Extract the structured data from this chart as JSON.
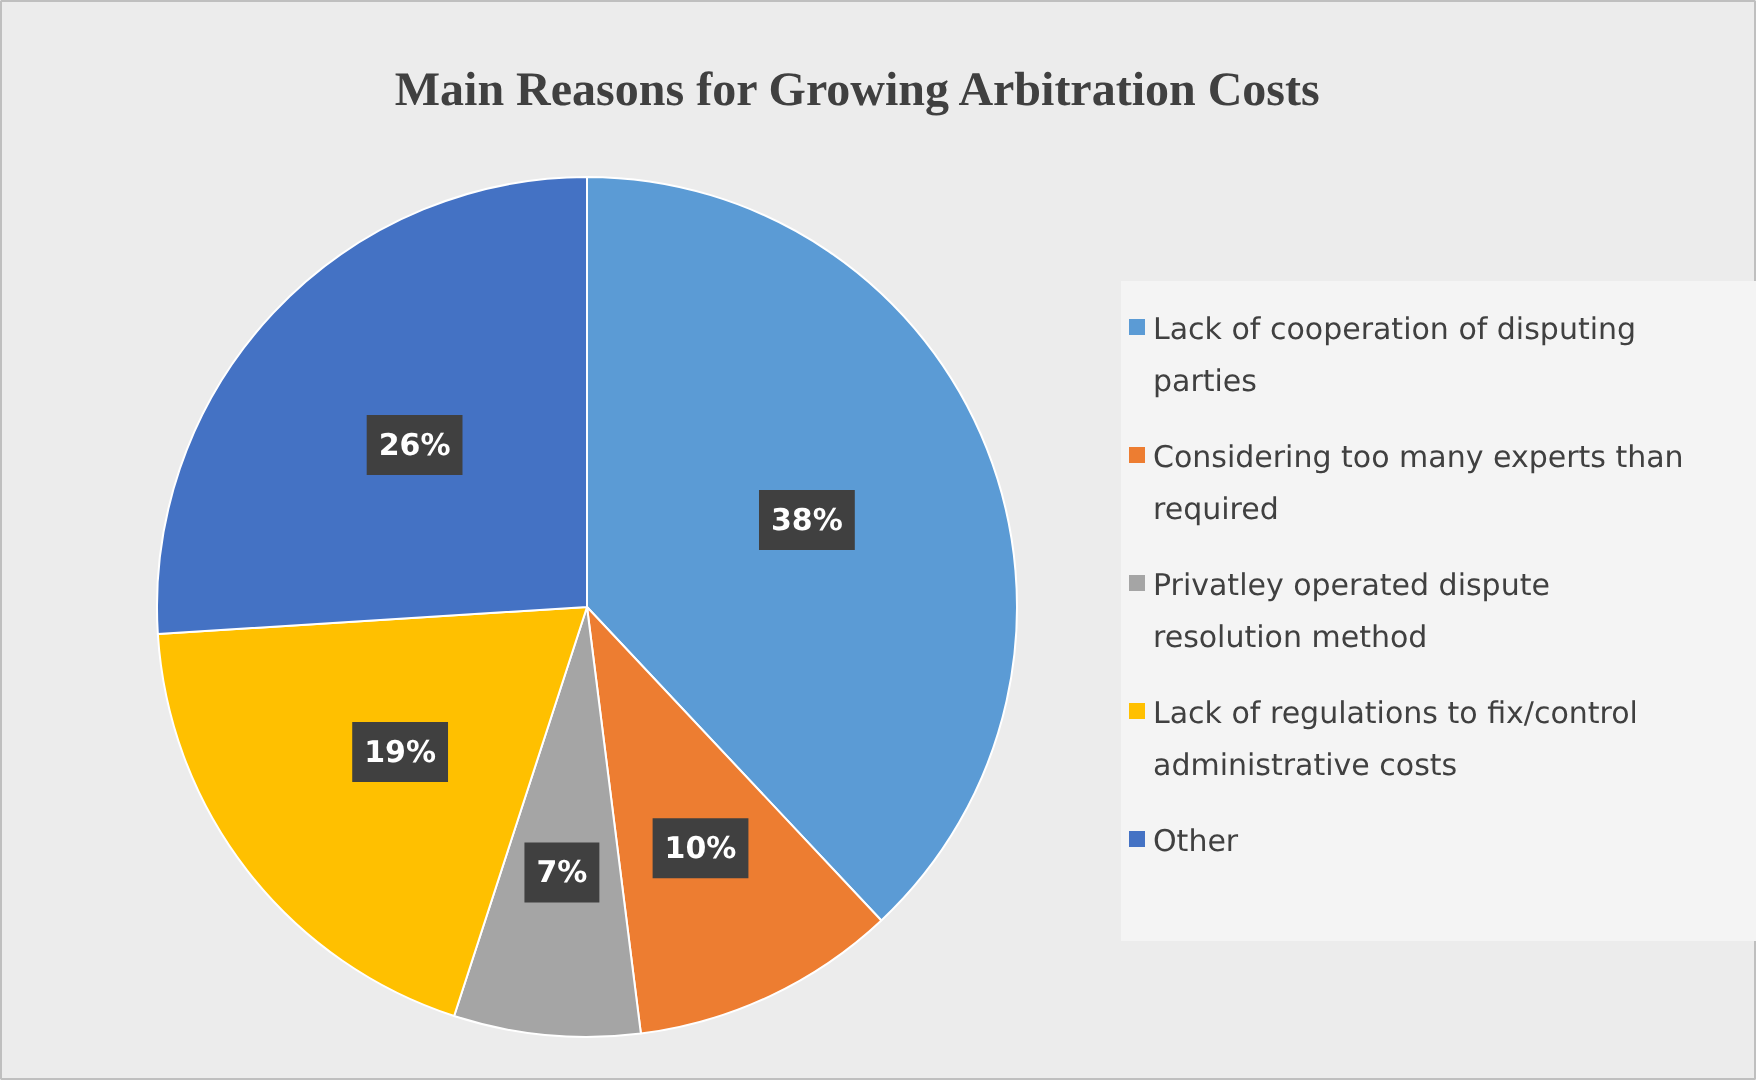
{
  "chart_data": {
    "type": "pie",
    "title": "Main Reasons for Growing Arbitration Costs",
    "categories": [
      "Lack of cooperation of disputing parties",
      "Considering too many experts than required",
      "Privatley operated dispute resolution method",
      "Lack of regulations to fix/control administrative costs",
      "Other"
    ],
    "values": [
      38,
      10,
      7,
      19,
      26
    ],
    "colors": [
      "#5b9bd5",
      "#ed7d31",
      "#a5a5a5",
      "#ffc000",
      "#4472c4"
    ],
    "value_labels": [
      "38%",
      "10%",
      "7%",
      "19%",
      "26%"
    ],
    "legend": "right"
  }
}
